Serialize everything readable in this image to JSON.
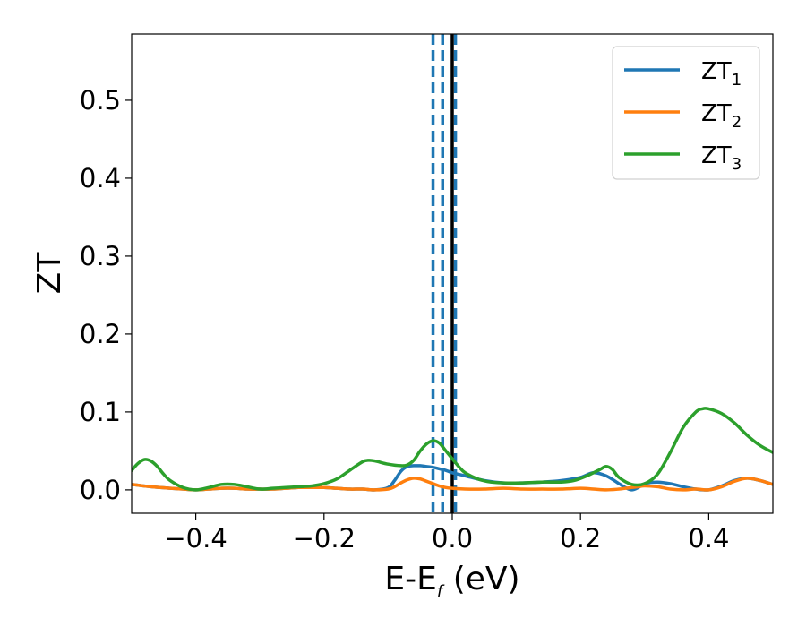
{
  "chart_data": {
    "type": "line",
    "xlabel": {
      "main": "E-E",
      "sub": "f",
      "tail": " (eV)"
    },
    "ylabel": "ZT",
    "xlim": [
      -0.5,
      0.5
    ],
    "ylim": [
      -0.03,
      0.585
    ],
    "xticks": [
      -0.4,
      -0.2,
      0.0,
      0.2,
      0.4
    ],
    "xtick_labels": [
      "−0.4",
      "−0.2",
      "0.0",
      "0.2",
      "0.4"
    ],
    "yticks": [
      0.0,
      0.1,
      0.2,
      0.3,
      0.4,
      0.5
    ],
    "ytick_labels": [
      "0.0",
      "0.1",
      "0.2",
      "0.3",
      "0.4",
      "0.5"
    ],
    "grid": false,
    "legend_position": "top-right",
    "vlines": [
      {
        "x": -0.03,
        "style": "dashed",
        "color": "#1f77b4"
      },
      {
        "x": -0.015,
        "style": "dashed",
        "color": "#1f77b4"
      },
      {
        "x": 0.005,
        "style": "dashed",
        "color": "#1f77b4"
      },
      {
        "x": 0.0,
        "style": "solid",
        "color": "#000000"
      }
    ],
    "series": [
      {
        "name": "ZT",
        "sub": "1",
        "color": "#1f77b4",
        "x": [
          -0.5,
          -0.47,
          -0.44,
          -0.42,
          -0.4,
          -0.38,
          -0.36,
          -0.34,
          -0.32,
          -0.3,
          -0.28,
          -0.26,
          -0.24,
          -0.22,
          -0.2,
          -0.18,
          -0.16,
          -0.14,
          -0.12,
          -0.1,
          -0.09,
          -0.08,
          -0.07,
          -0.06,
          -0.05,
          -0.04,
          -0.03,
          -0.02,
          -0.01,
          0.0,
          0.02,
          0.05,
          0.08,
          0.11,
          0.14,
          0.17,
          0.2,
          0.22,
          0.24,
          0.26,
          0.27,
          0.28,
          0.29,
          0.3,
          0.32,
          0.34,
          0.36,
          0.38,
          0.4,
          0.42,
          0.44,
          0.46,
          0.48,
          0.5
        ],
        "y": [
          0.007,
          0.004,
          0.002,
          0.001,
          0.0,
          0.001,
          0.002,
          0.002,
          0.001,
          0.001,
          0.001,
          0.002,
          0.003,
          0.003,
          0.003,
          0.002,
          0.001,
          0.001,
          0.0,
          0.003,
          0.012,
          0.024,
          0.03,
          0.031,
          0.031,
          0.03,
          0.029,
          0.027,
          0.025,
          0.022,
          0.018,
          0.012,
          0.009,
          0.009,
          0.01,
          0.012,
          0.016,
          0.022,
          0.018,
          0.008,
          0.003,
          0.0,
          0.003,
          0.008,
          0.01,
          0.008,
          0.004,
          0.001,
          0.0,
          0.005,
          0.012,
          0.015,
          0.012,
          0.007
        ]
      },
      {
        "name": "ZT",
        "sub": "2",
        "color": "#ff7f0e",
        "x": [
          -0.5,
          -0.47,
          -0.44,
          -0.42,
          -0.4,
          -0.38,
          -0.36,
          -0.34,
          -0.32,
          -0.3,
          -0.28,
          -0.26,
          -0.24,
          -0.22,
          -0.2,
          -0.18,
          -0.16,
          -0.14,
          -0.12,
          -0.1,
          -0.09,
          -0.08,
          -0.07,
          -0.06,
          -0.05,
          -0.04,
          -0.03,
          -0.02,
          -0.01,
          0.0,
          0.02,
          0.05,
          0.08,
          0.11,
          0.14,
          0.17,
          0.2,
          0.22,
          0.24,
          0.26,
          0.27,
          0.28,
          0.29,
          0.3,
          0.32,
          0.34,
          0.36,
          0.38,
          0.4,
          0.42,
          0.44,
          0.46,
          0.48,
          0.5
        ],
        "y": [
          0.007,
          0.004,
          0.002,
          0.001,
          0.0,
          0.001,
          0.002,
          0.002,
          0.001,
          0.001,
          0.001,
          0.002,
          0.003,
          0.003,
          0.003,
          0.002,
          0.001,
          0.001,
          0.0,
          0.001,
          0.004,
          0.009,
          0.013,
          0.015,
          0.014,
          0.011,
          0.008,
          0.005,
          0.003,
          0.002,
          0.001,
          0.001,
          0.002,
          0.001,
          0.001,
          0.001,
          0.002,
          0.001,
          0.0,
          0.001,
          0.002,
          0.003,
          0.004,
          0.005,
          0.004,
          0.001,
          0.0,
          0.001,
          0.0,
          0.004,
          0.011,
          0.015,
          0.012,
          0.007
        ]
      },
      {
        "name": "ZT",
        "sub": "3",
        "color": "#2ca02c",
        "x": [
          -0.5,
          -0.49,
          -0.48,
          -0.47,
          -0.46,
          -0.45,
          -0.44,
          -0.42,
          -0.4,
          -0.38,
          -0.36,
          -0.34,
          -0.32,
          -0.3,
          -0.28,
          -0.26,
          -0.24,
          -0.22,
          -0.2,
          -0.18,
          -0.16,
          -0.14,
          -0.13,
          -0.12,
          -0.1,
          -0.08,
          -0.07,
          -0.06,
          -0.05,
          -0.04,
          -0.03,
          -0.02,
          -0.01,
          0.0,
          0.01,
          0.02,
          0.04,
          0.06,
          0.08,
          0.11,
          0.14,
          0.17,
          0.19,
          0.21,
          0.23,
          0.24,
          0.25,
          0.26,
          0.28,
          0.3,
          0.32,
          0.34,
          0.36,
          0.38,
          0.39,
          0.4,
          0.42,
          0.44,
          0.46,
          0.48,
          0.5
        ],
        "y": [
          0.025,
          0.034,
          0.039,
          0.037,
          0.03,
          0.02,
          0.012,
          0.003,
          0.0,
          0.003,
          0.007,
          0.007,
          0.004,
          0.001,
          0.002,
          0.003,
          0.004,
          0.005,
          0.008,
          0.014,
          0.025,
          0.036,
          0.038,
          0.037,
          0.033,
          0.031,
          0.032,
          0.038,
          0.05,
          0.059,
          0.063,
          0.06,
          0.05,
          0.04,
          0.03,
          0.022,
          0.014,
          0.01,
          0.009,
          0.009,
          0.01,
          0.01,
          0.012,
          0.018,
          0.026,
          0.03,
          0.026,
          0.016,
          0.007,
          0.008,
          0.02,
          0.048,
          0.08,
          0.1,
          0.104,
          0.104,
          0.098,
          0.086,
          0.07,
          0.057,
          0.048
        ]
      }
    ]
  }
}
